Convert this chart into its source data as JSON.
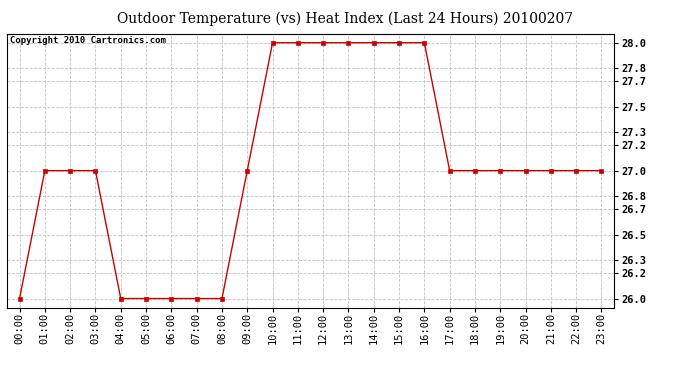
{
  "title": "Outdoor Temperature (vs) Heat Index (Last 24 Hours) 20100207",
  "copyright_text": "Copyright 2010 Cartronics.com",
  "x_labels": [
    "00:00",
    "01:00",
    "02:00",
    "03:00",
    "04:00",
    "05:00",
    "06:00",
    "07:00",
    "08:00",
    "09:00",
    "10:00",
    "11:00",
    "12:00",
    "13:00",
    "14:00",
    "15:00",
    "16:00",
    "17:00",
    "18:00",
    "19:00",
    "20:00",
    "21:00",
    "22:00",
    "23:00"
  ],
  "y_values": [
    26.0,
    27.0,
    27.0,
    27.0,
    26.0,
    26.0,
    26.0,
    26.0,
    26.0,
    27.0,
    28.0,
    28.0,
    28.0,
    28.0,
    28.0,
    28.0,
    28.0,
    27.0,
    27.0,
    27.0,
    27.0,
    27.0,
    27.0,
    27.0
  ],
  "y_ticks": [
    26.0,
    26.2,
    26.3,
    26.5,
    26.7,
    26.8,
    27.0,
    27.2,
    27.3,
    27.5,
    27.7,
    27.8,
    28.0
  ],
  "y_min": 25.93,
  "y_max": 28.07,
  "line_color": "#cc0000",
  "marker": "s",
  "marker_size": 3,
  "bg_color": "#ffffff",
  "grid_color": "#bbbbbb",
  "title_fontsize": 10,
  "copyright_fontsize": 6.5,
  "tick_fontsize": 7.5
}
